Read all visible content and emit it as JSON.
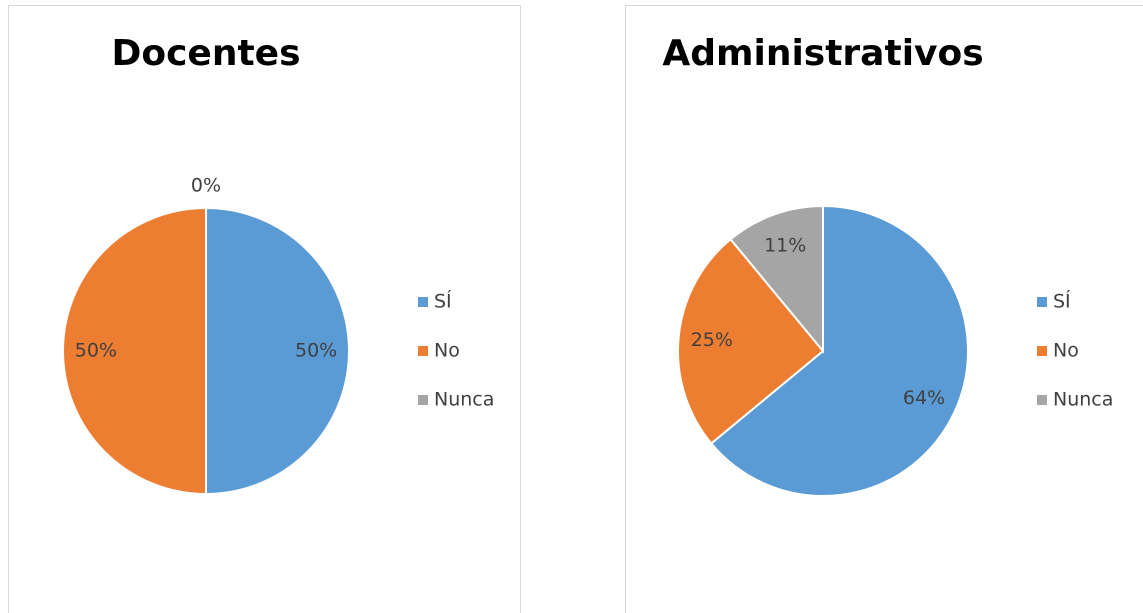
{
  "chart_data": [
    {
      "type": "pie",
      "title": "Docentes",
      "categories": [
        "SÍ",
        "No",
        "Nunca"
      ],
      "values": [
        50,
        50,
        0
      ],
      "value_labels": [
        "50%",
        "50%",
        "0%"
      ],
      "colors": [
        "#5b9bd5",
        "#ed7d31",
        "#a5a5a5"
      ],
      "legend": "right"
    },
    {
      "type": "pie",
      "title": "Administrativos",
      "categories": [
        "SÍ",
        "No",
        "Nunca"
      ],
      "values": [
        64,
        25,
        11
      ],
      "value_labels": [
        "64%",
        "25%",
        "11%"
      ],
      "colors": [
        "#5b9bd5",
        "#ed7d31",
        "#a5a5a5"
      ],
      "legend": "right"
    }
  ]
}
